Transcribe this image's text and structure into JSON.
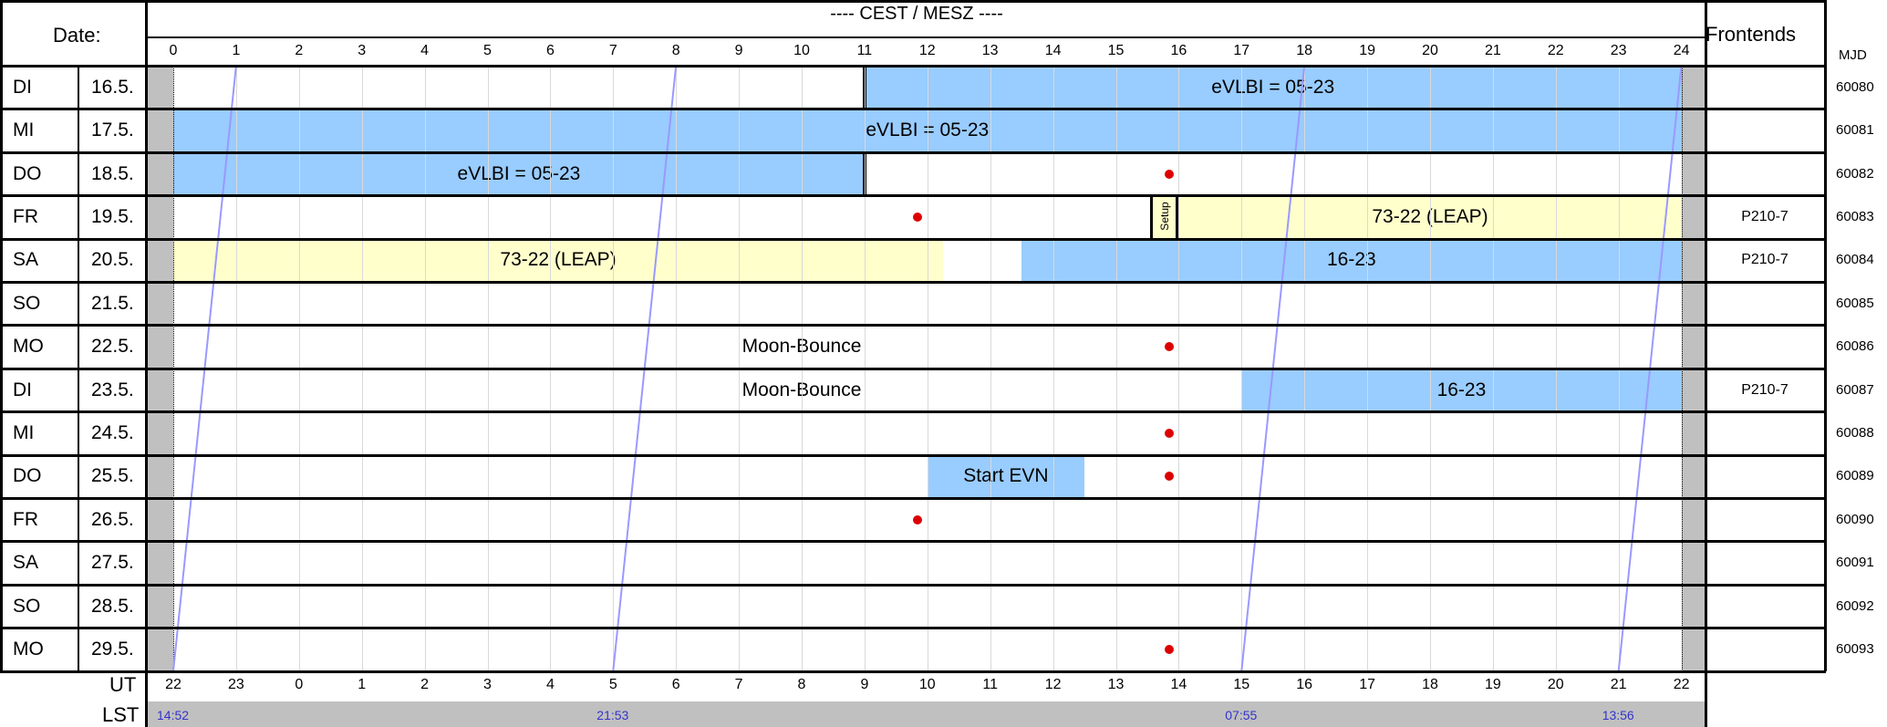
{
  "header": {
    "date_label": "Date:",
    "timezone_label": "---- CEST / MESZ ----",
    "frontends_label": "Frontends",
    "mjd_label": "MJD",
    "ut_label": "UT",
    "lst_label": "LST"
  },
  "cest_hours": [
    "0",
    "1",
    "2",
    "3",
    "4",
    "5",
    "6",
    "7",
    "8",
    "9",
    "10",
    "11",
    "12",
    "13",
    "14",
    "15",
    "16",
    "17",
    "18",
    "19",
    "20",
    "21",
    "22",
    "23",
    "24"
  ],
  "ut_hours": [
    "22",
    "23",
    "0",
    "1",
    "2",
    "3",
    "4",
    "5",
    "6",
    "7",
    "8",
    "9",
    "10",
    "11",
    "12",
    "13",
    "14",
    "15",
    "16",
    "17",
    "18",
    "19",
    "20",
    "21",
    "22"
  ],
  "lst_labels": [
    {
      "hour": 0,
      "text": "14:52"
    },
    {
      "hour": 7,
      "text": "21:53"
    },
    {
      "hour": 17,
      "text": "07:55"
    },
    {
      "hour": 23,
      "text": "13:56"
    }
  ],
  "rows": [
    {
      "day": "DI",
      "date": "16.5.",
      "frontend": "",
      "mjd": "60080"
    },
    {
      "day": "MI",
      "date": "17.5.",
      "frontend": "",
      "mjd": "60081"
    },
    {
      "day": "DO",
      "date": "18.5.",
      "frontend": "",
      "mjd": "60082"
    },
    {
      "day": "FR",
      "date": "19.5.",
      "frontend": "P210-7",
      "mjd": "60083"
    },
    {
      "day": "SA",
      "date": "20.5.",
      "frontend": "P210-7",
      "mjd": "60084"
    },
    {
      "day": "SO",
      "date": "21.5.",
      "frontend": "",
      "mjd": "60085"
    },
    {
      "day": "MO",
      "date": "22.5.",
      "frontend": "",
      "mjd": "60086"
    },
    {
      "day": "DI",
      "date": "23.5.",
      "frontend": "P210-7",
      "mjd": "60087"
    },
    {
      "day": "MI",
      "date": "24.5.",
      "frontend": "",
      "mjd": "60088"
    },
    {
      "day": "DO",
      "date": "25.5.",
      "frontend": "",
      "mjd": "60089"
    },
    {
      "day": "FR",
      "date": "26.5.",
      "frontend": "",
      "mjd": "60090"
    },
    {
      "day": "SA",
      "date": "27.5.",
      "frontend": "",
      "mjd": "60091"
    },
    {
      "day": "SO",
      "date": "28.5.",
      "frontend": "",
      "mjd": "60092"
    },
    {
      "day": "MO",
      "date": "29.5.",
      "frontend": "",
      "mjd": "60093"
    }
  ],
  "blocks": [
    {
      "row": 0,
      "start": 11,
      "end": 24,
      "label": "eVLBI = 05-23",
      "kind": "blue"
    },
    {
      "row": 1,
      "start": 0,
      "end": 24,
      "label": "eVLBI = 05-23",
      "kind": "blue"
    },
    {
      "row": 2,
      "start": 0,
      "end": 11,
      "label": "eVLBI = 05-23",
      "kind": "blue"
    },
    {
      "row": 3,
      "start": 15.55,
      "end": 16,
      "label": "Setup",
      "kind": "setup"
    },
    {
      "row": 3,
      "start": 16,
      "end": 24,
      "label": "73-22 (LEAP)",
      "kind": "yellow"
    },
    {
      "row": 4,
      "start": 0,
      "end": 12.25,
      "label": "73-22 (LEAP)",
      "kind": "yellow"
    },
    {
      "row": 4,
      "start": 13.5,
      "end": 24,
      "label": "16-23",
      "kind": "blue"
    },
    {
      "row": 6,
      "start": 7.5,
      "end": 12.5,
      "label": "Moon-Bounce",
      "kind": "text"
    },
    {
      "row": 7,
      "start": 7.5,
      "end": 12.5,
      "label": "Moon-Bounce",
      "kind": "text"
    },
    {
      "row": 7,
      "start": 17,
      "end": 24,
      "label": "16-23",
      "kind": "blue"
    },
    {
      "row": 9,
      "start": 12,
      "end": 14.5,
      "label": "Start EVN",
      "kind": "blue"
    }
  ],
  "markers": [
    {
      "row": 2,
      "hour": 15.85
    },
    {
      "row": 3,
      "hour": 11.85
    },
    {
      "row": 6,
      "hour": 15.85
    },
    {
      "row": 8,
      "hour": 15.85
    },
    {
      "row": 9,
      "hour": 15.85
    },
    {
      "row": 10,
      "hour": 11.85
    },
    {
      "row": 13,
      "hour": 15.85
    }
  ],
  "lst_lines": [
    {
      "start_hour": 1,
      "end_hour": 0
    },
    {
      "start_hour": 8,
      "end_hour": 7
    },
    {
      "start_hour": 18,
      "end_hour": 17
    },
    {
      "start_hour": 24,
      "end_hour": 23
    }
  ],
  "colors": {
    "blue": "#99ccff",
    "yellow": "#ffffcc",
    "gray": "#c0c0c0",
    "marker": "#dd0000",
    "lst_line": "#9999ff",
    "lst_text": "#3333cc"
  }
}
